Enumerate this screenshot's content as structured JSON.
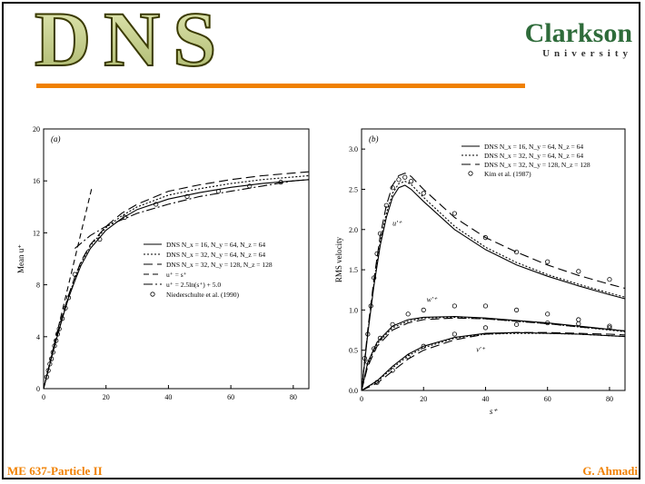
{
  "slide": {
    "title": "DNS",
    "logo": {
      "name": "Clarkson",
      "subtitle": "University"
    },
    "footer_left": "ME 637-Particle II",
    "footer_right": "G. Ahmadi"
  },
  "colors": {
    "title_fill": "#c8d08c",
    "title_outline": "#3a3a00",
    "accent_rule": "#f08000",
    "footer_text": "#f08000",
    "logo_green": "#2e6b3a"
  },
  "chart_data": [
    {
      "type": "line",
      "panel": "(a)",
      "xlabel": "",
      "ylabel": "Mean u⁺",
      "xlim": [
        0,
        85
      ],
      "ylim": [
        0,
        20
      ],
      "xticks": [
        0,
        20,
        40,
        60,
        80
      ],
      "yticks": [
        0,
        4,
        8,
        12,
        16,
        20
      ],
      "legend": [
        "DNS N_x = 16, N_y = 64, N_z = 64",
        "DNS N_x = 32, N_y = 64, N_z = 64",
        "DNS N_x = 32, N_y = 128, N_z = 128",
        "u⁺ = s⁺",
        "u⁺ = 2.5ln(s⁺) + 5.0",
        "Niederschulte et al. (1990)"
      ],
      "series": [
        {
          "name": "DNS N_x = 16, N_y = 64, N_z = 64",
          "dash": "solid",
          "x": [
            0,
            2,
            4,
            6,
            8,
            10,
            12,
            15,
            20,
            25,
            30,
            40,
            50,
            60,
            70,
            80,
            85
          ],
          "y": [
            0,
            1.9,
            3.7,
            5.4,
            7,
            8.3,
            9.5,
            10.8,
            12.2,
            13.1,
            13.8,
            14.6,
            15.1,
            15.5,
            15.8,
            16.0,
            16.1
          ]
        },
        {
          "name": "DNS N_x = 32, N_y = 64, N_z = 64",
          "dash": "dotted",
          "x": [
            0,
            2,
            4,
            6,
            8,
            10,
            12,
            15,
            20,
            25,
            30,
            40,
            50,
            60,
            70,
            80,
            85
          ],
          "y": [
            0,
            1.9,
            3.8,
            5.5,
            7.1,
            8.5,
            9.7,
            11.0,
            12.4,
            13.3,
            14.0,
            14.9,
            15.4,
            15.8,
            16.1,
            16.3,
            16.4
          ]
        },
        {
          "name": "DNS N_x = 32, N_y = 128, N_z = 128",
          "dash": "longdash",
          "x": [
            0,
            2,
            4,
            6,
            8,
            10,
            12,
            15,
            20,
            25,
            30,
            40,
            50,
            60,
            70,
            80,
            85
          ],
          "y": [
            0,
            2.0,
            3.9,
            5.6,
            7.2,
            8.6,
            9.8,
            11.1,
            12.5,
            13.5,
            14.2,
            15.2,
            15.7,
            16.1,
            16.4,
            16.6,
            16.7
          ]
        },
        {
          "name": "u⁺ = s⁺",
          "dash": "dash",
          "x": [
            0,
            15.5
          ],
          "y": [
            0,
            15.5
          ]
        },
        {
          "name": "u⁺ = 2.5ln(s⁺) + 5.0",
          "dash": "dashdot",
          "x": [
            10,
            15,
            20,
            30,
            40,
            50,
            60,
            70,
            80,
            85
          ],
          "y": [
            10.8,
            11.8,
            12.5,
            13.5,
            14.2,
            14.8,
            15.2,
            15.6,
            16.0,
            16.1
          ]
        },
        {
          "name": "Niederschulte et al. (1990)",
          "marker": "circle",
          "x": [
            1,
            1.5,
            2,
            2.5,
            3,
            3.5,
            4,
            4.5,
            5,
            6,
            7,
            8,
            10,
            18,
            26,
            36,
            46,
            56,
            66,
            76
          ],
          "y": [
            0.9,
            1.4,
            1.9,
            2.3,
            2.8,
            3.3,
            3.7,
            4.2,
            4.6,
            5.4,
            6.2,
            7.0,
            8.8,
            11.5,
            13.2,
            14.2,
            14.8,
            15.2,
            15.6,
            15.9
          ]
        }
      ]
    },
    {
      "type": "line",
      "panel": "(b)",
      "xlabel": "s⁺",
      "ylabel": "RMS velocity",
      "xlim": [
        0,
        85
      ],
      "ylim": [
        0,
        3.25
      ],
      "xticks": [
        0,
        20,
        40,
        60,
        80
      ],
      "yticks": [
        0,
        0.5,
        1.0,
        1.5,
        2.0,
        2.5,
        3.0
      ],
      "legend": [
        "DNS N_x = 16, N_y = 64, N_z = 64",
        "DNS N_x = 32, N_y = 64, N_z = 64",
        "DNS N_x = 32, N_y = 128, N_z = 128",
        "Kim et al. (1987)"
      ],
      "annotations": [
        "u'⁺",
        "w'⁺",
        "v'⁺"
      ],
      "series": [
        {
          "name": "DNS N_x = 16, N_y = 64, N_z = 64",
          "group": "u'⁺",
          "dash": "solid",
          "x": [
            0,
            2,
            4,
            6,
            8,
            10,
            12,
            14,
            16,
            20,
            30,
            40,
            50,
            60,
            70,
            80,
            85
          ],
          "y": [
            0,
            0.7,
            1.3,
            1.8,
            2.15,
            2.4,
            2.52,
            2.55,
            2.5,
            2.35,
            2.0,
            1.75,
            1.56,
            1.42,
            1.3,
            1.19,
            1.14
          ]
        },
        {
          "name": "DNS N_x = 32, N_y = 64, N_z = 64",
          "group": "u'⁺",
          "dash": "dotted",
          "x": [
            0,
            2,
            4,
            6,
            8,
            10,
            12,
            14,
            16,
            20,
            30,
            40,
            50,
            60,
            70,
            80,
            85
          ],
          "y": [
            0,
            0.72,
            1.33,
            1.85,
            2.2,
            2.45,
            2.57,
            2.6,
            2.56,
            2.4,
            2.04,
            1.78,
            1.59,
            1.44,
            1.32,
            1.21,
            1.16
          ]
        },
        {
          "name": "DNS N_x = 32, N_y = 128, N_z = 128",
          "group": "u'⁺",
          "dash": "longdash",
          "x": [
            0,
            2,
            4,
            6,
            8,
            10,
            12,
            14,
            16,
            20,
            30,
            40,
            50,
            60,
            70,
            80,
            85
          ],
          "y": [
            0,
            0.75,
            1.38,
            1.92,
            2.3,
            2.55,
            2.67,
            2.7,
            2.66,
            2.5,
            2.15,
            1.9,
            1.72,
            1.56,
            1.43,
            1.32,
            1.27
          ]
        },
        {
          "name": "DNS N_x = 16, N_y = 64, N_z = 64",
          "group": "w'⁺",
          "dash": "solid",
          "x": [
            0,
            2,
            5,
            10,
            15,
            20,
            30,
            40,
            50,
            60,
            70,
            80,
            85
          ],
          "y": [
            0,
            0.35,
            0.6,
            0.8,
            0.88,
            0.91,
            0.92,
            0.9,
            0.87,
            0.84,
            0.8,
            0.76,
            0.74
          ]
        },
        {
          "name": "DNS N_x = 32, N_y = 64, N_z = 64",
          "group": "w'⁺",
          "dash": "dotted",
          "x": [
            0,
            2,
            5,
            10,
            15,
            20,
            30,
            40,
            50,
            60,
            70,
            80,
            85
          ],
          "y": [
            0,
            0.33,
            0.58,
            0.78,
            0.86,
            0.9,
            0.91,
            0.89,
            0.86,
            0.83,
            0.79,
            0.75,
            0.73
          ]
        },
        {
          "name": "DNS N_x = 32, N_y = 128, N_z = 128",
          "group": "w'⁺",
          "dash": "longdash",
          "x": [
            0,
            2,
            5,
            10,
            15,
            20,
            30,
            40,
            50,
            60,
            70,
            80,
            85
          ],
          "y": [
            0,
            0.3,
            0.55,
            0.75,
            0.84,
            0.88,
            0.9,
            0.89,
            0.86,
            0.83,
            0.79,
            0.76,
            0.74
          ]
        },
        {
          "name": "DNS N_x = 16, N_y = 64, N_z = 64",
          "group": "v'⁺",
          "dash": "solid",
          "x": [
            0,
            5,
            10,
            15,
            20,
            30,
            40,
            50,
            60,
            70,
            80,
            85
          ],
          "y": [
            0,
            0.12,
            0.3,
            0.45,
            0.55,
            0.66,
            0.71,
            0.72,
            0.71,
            0.7,
            0.68,
            0.67
          ]
        },
        {
          "name": "DNS N_x = 32, N_y = 64, N_z = 64",
          "group": "v'⁺",
          "dash": "dotted",
          "x": [
            0,
            5,
            10,
            15,
            20,
            30,
            40,
            50,
            60,
            70,
            80,
            85
          ],
          "y": [
            0,
            0.11,
            0.28,
            0.43,
            0.53,
            0.65,
            0.7,
            0.71,
            0.71,
            0.7,
            0.68,
            0.67
          ]
        },
        {
          "name": "DNS N_x = 32, N_y = 128, N_z = 128",
          "group": "v'⁺",
          "dash": "longdash",
          "x": [
            0,
            5,
            10,
            15,
            20,
            30,
            40,
            50,
            60,
            70,
            80,
            85
          ],
          "y": [
            0,
            0.09,
            0.24,
            0.39,
            0.5,
            0.63,
            0.7,
            0.72,
            0.72,
            0.71,
            0.7,
            0.69
          ]
        },
        {
          "name": "Kim et al. (1987)",
          "group": "u'⁺",
          "marker": "circle",
          "x": [
            1,
            2,
            3,
            4,
            5,
            6,
            8,
            10,
            12,
            14,
            16,
            20,
            30,
            40,
            50,
            60,
            70,
            80
          ],
          "y": [
            0.4,
            0.7,
            1.05,
            1.4,
            1.7,
            1.95,
            2.3,
            2.52,
            2.62,
            2.65,
            2.6,
            2.45,
            2.2,
            1.9,
            1.72,
            1.6,
            1.48,
            1.38
          ]
        },
        {
          "name": "Kim et al. (1987)",
          "group": "w'⁺",
          "marker": "circle",
          "x": [
            2,
            4,
            6,
            10,
            15,
            20,
            30,
            40,
            50,
            60,
            70,
            80
          ],
          "y": [
            0.35,
            0.52,
            0.65,
            0.82,
            0.95,
            1.0,
            1.05,
            1.05,
            1.0,
            0.95,
            0.88,
            0.8
          ]
        },
        {
          "name": "Kim et al. (1987)",
          "group": "v'⁺",
          "marker": "circle",
          "x": [
            5,
            10,
            15,
            20,
            30,
            40,
            50,
            60,
            70,
            80
          ],
          "y": [
            0.1,
            0.25,
            0.42,
            0.55,
            0.7,
            0.78,
            0.82,
            0.84,
            0.83,
            0.78
          ]
        }
      ]
    }
  ]
}
